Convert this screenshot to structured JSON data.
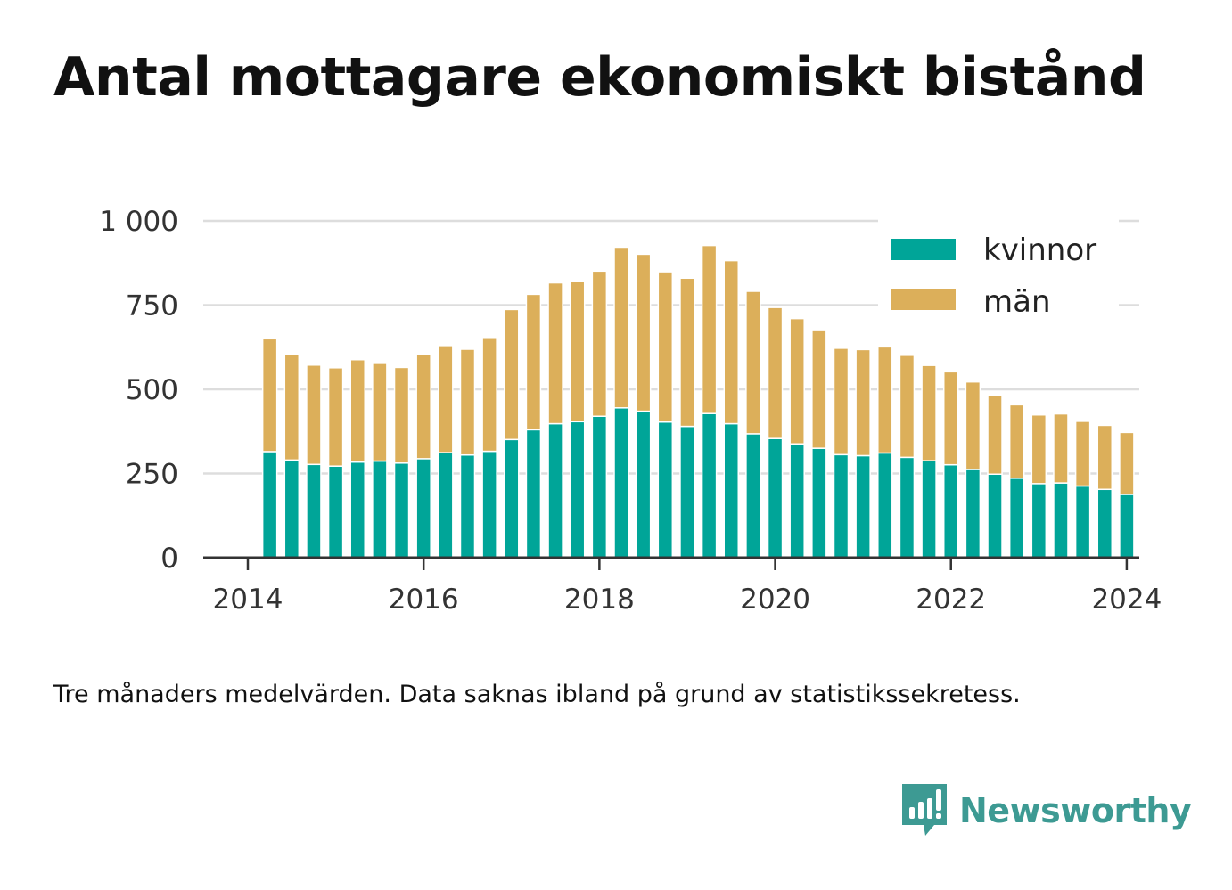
{
  "title": "Antal mottagare ekonomiskt bistånd",
  "note": "Tre månaders medelvärden. Data saknas ibland på grund av statistikssekretess.",
  "brand": {
    "name": "Newsworthy",
    "icon": "newsworthy-logo-icon"
  },
  "colors": {
    "kvinnor": "#00a598",
    "man": "#dcaf5a",
    "grid": "#dddddd",
    "axis": "#333333",
    "brand": "#3d9a93"
  },
  "chart_data": {
    "type": "bar",
    "stacked": true,
    "title": "",
    "xlabel": "",
    "ylabel": "",
    "ylim": [
      0,
      1000
    ],
    "xlim": [
      2014.0,
      2024.65
    ],
    "y_ticks": [
      {
        "value": 0,
        "label": "0"
      },
      {
        "value": 250,
        "label": "250"
      },
      {
        "value": 500,
        "label": "500"
      },
      {
        "value": 750,
        "label": "750"
      },
      {
        "value": 1000,
        "label": "1 000"
      }
    ],
    "x_ticks": [
      {
        "value": 2014,
        "label": "2014"
      },
      {
        "value": 2016,
        "label": "2016"
      },
      {
        "value": 2018,
        "label": "2018"
      },
      {
        "value": 2020,
        "label": "2020"
      },
      {
        "value": 2022,
        "label": "2022"
      },
      {
        "value": 2024,
        "label": "2024"
      }
    ],
    "grid": true,
    "legend_position": "top-right",
    "x": [
      "2014-04",
      "2014-07",
      "2014-10",
      "2015-01",
      "2015-04",
      "2015-07",
      "2015-10",
      "2016-01",
      "2016-04",
      "2016-07",
      "2016-10",
      "2017-01",
      "2017-04",
      "2017-07",
      "2017-10",
      "2018-01",
      "2018-04",
      "2018-07",
      "2018-10",
      "2019-01",
      "2019-04",
      "2019-07",
      "2019-10",
      "2020-01",
      "2020-04",
      "2020-07",
      "2020-10",
      "2021-01",
      "2021-04",
      "2021-07",
      "2021-10",
      "2022-01",
      "2022-04",
      "2022-07",
      "2022-10",
      "2023-01",
      "2023-04",
      "2023-07",
      "2023-10",
      "2024-01"
    ],
    "series": [
      {
        "name": "kvinnor",
        "color": "#00a598",
        "values": [
          315,
          290,
          277,
          272,
          284,
          287,
          281,
          294,
          312,
          305,
          316,
          351,
          380,
          398,
          404,
          420,
          445,
          435,
          403,
          390,
          428,
          398,
          368,
          354,
          338,
          325,
          306,
          303,
          311,
          298,
          288,
          276,
          262,
          248,
          236,
          220,
          222,
          213,
          203,
          188
        ]
      },
      {
        "name": "män",
        "color": "#dcaf5a",
        "values": [
          335,
          315,
          295,
          292,
          304,
          290,
          284,
          311,
          318,
          314,
          338,
          386,
          402,
          418,
          417,
          431,
          477,
          466,
          446,
          440,
          499,
          484,
          423,
          389,
          372,
          352,
          316,
          315,
          315,
          303,
          283,
          276,
          260,
          235,
          218,
          204,
          205,
          192,
          190,
          184
        ]
      }
    ]
  }
}
